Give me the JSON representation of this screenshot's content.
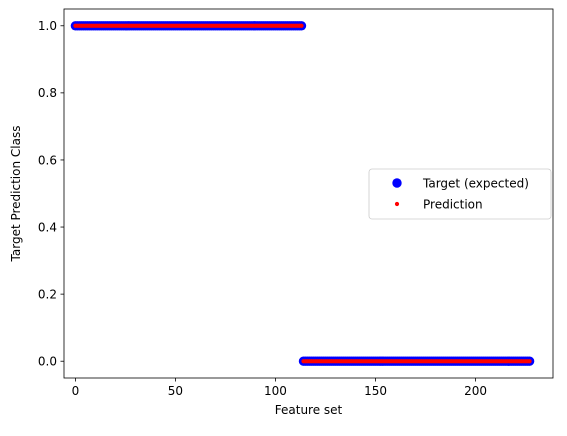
{
  "chart_data": {
    "type": "scatter",
    "title": "",
    "xlabel": "Feature set",
    "ylabel": "Target Prediction Class",
    "xlim": [
      -5.7,
      238.7
    ],
    "ylim": [
      -0.05,
      1.05
    ],
    "x_ticks": [
      0,
      50,
      100,
      150,
      200
    ],
    "x_tick_labels": [
      "0",
      "50",
      "100",
      "150",
      "200"
    ],
    "y_ticks": [
      0.0,
      0.2,
      0.4,
      0.6,
      0.8,
      1.0
    ],
    "y_tick_labels": [
      "0.0",
      "0.2",
      "0.4",
      "0.6",
      "0.8",
      "1.0"
    ],
    "grid": false,
    "legend_position": "center-right",
    "series": [
      {
        "name": "Target (expected)",
        "color": "#0000ff",
        "marker": "large-circle",
        "segments": [
          {
            "x_start": 0,
            "x_end": 113,
            "y": 1.0
          },
          {
            "x_start": 114,
            "x_end": 227,
            "y": 0.0
          }
        ]
      },
      {
        "name": "Prediction",
        "color": "#ff0000",
        "marker": "small-dot",
        "segments": [
          {
            "x_start": 0,
            "x_end": 113,
            "y": 1.0
          },
          {
            "x_start": 114,
            "x_end": 227,
            "y": 0.0
          }
        ]
      }
    ]
  }
}
